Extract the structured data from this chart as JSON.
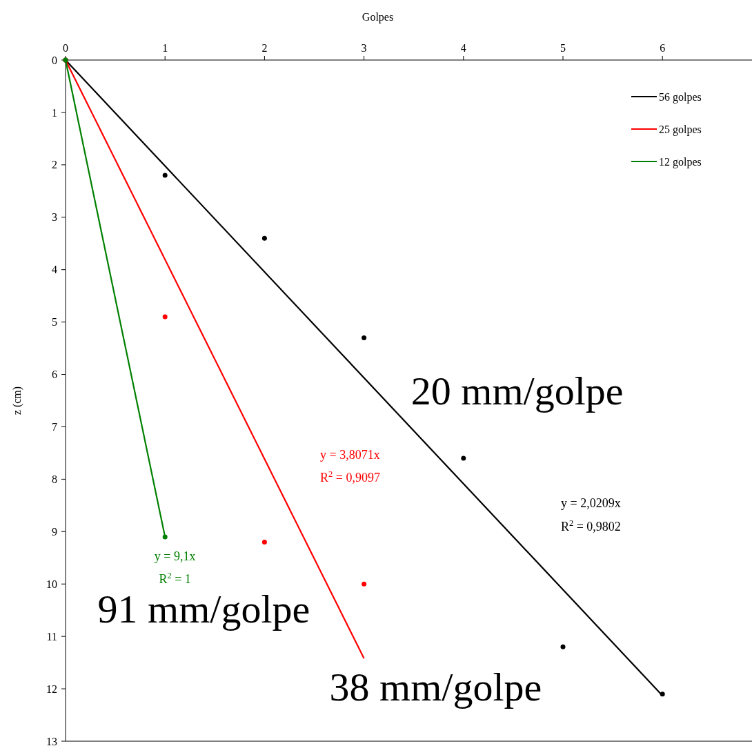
{
  "chart_data": {
    "type": "scatter",
    "xlabel": "Golpes",
    "ylabel": "z (cm)",
    "xlim": [
      0,
      6.9
    ],
    "xticks": [
      0,
      1,
      2,
      3,
      4,
      5,
      6
    ],
    "ylim": [
      13,
      0
    ],
    "yticks": [
      0,
      1,
      2,
      3,
      4,
      5,
      6,
      7,
      8,
      9,
      10,
      11,
      12,
      13
    ],
    "grid": false,
    "legend": "top right",
    "marker": "circle",
    "series": [
      {
        "color": "#000000",
        "x": [
          0,
          1,
          2,
          3,
          4,
          5,
          6
        ],
        "values": [
          0,
          2.2,
          3.4,
          5.3,
          7.6,
          11.2,
          12.1
        ]
      },
      {
        "color": "#ff0000",
        "x": [
          0,
          1,
          2,
          3
        ],
        "values": [
          0,
          4.9,
          9.2,
          10
        ]
      },
      {
        "color": "#008000",
        "x": [
          0,
          1
        ],
        "values": [
          0,
          9.1
        ]
      },
      {
        "type": "line",
        "name": "56 golpes",
        "color": "#000000",
        "x": [
          0,
          6
        ],
        "values": [
          0,
          12.13
        ],
        "marker": "none",
        "line_style": "solid"
      },
      {
        "type": "line",
        "name": "25 golpes",
        "color": "#ff0000",
        "x": [
          0,
          3
        ],
        "values": [
          0,
          11.42
        ],
        "marker": "none",
        "line_style": "solid"
      },
      {
        "type": "line",
        "name": "12 golpes",
        "color": "#008000",
        "x": [
          0,
          1
        ],
        "values": [
          0,
          9.1
        ],
        "marker": "none",
        "line_style": "solid"
      }
    ],
    "annotations": [
      "20 mm/golpe",
      "y = 2,0209x",
      "R$^{2}$ = 0,9802",
      "y = 3,8071x",
      "R$^{2}$ = 0,9097",
      "y = 9,1x",
      "R$^{2}$ = 1",
      "91 mm/golpe",
      "38 mm/golpe"
    ]
  }
}
